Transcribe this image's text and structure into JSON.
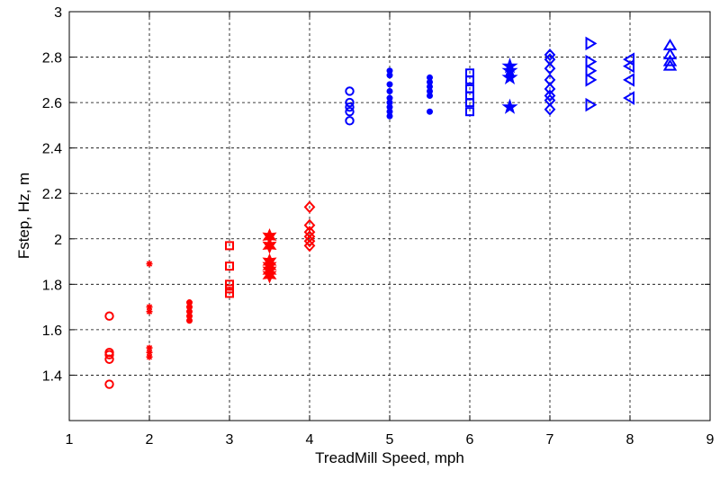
{
  "chart_data": {
    "type": "scatter",
    "title": "",
    "xlabel": "TreadMill Speed, mph",
    "ylabel": "Fstep, Hz, m",
    "xlim": [
      1,
      9
    ],
    "ylim": [
      1.2,
      3.0
    ],
    "xticks": [
      "1",
      "2",
      "3",
      "4",
      "5",
      "6",
      "7",
      "8",
      "9"
    ],
    "yticks": [
      "1.4",
      "1.6",
      "1.8",
      "2",
      "2.2",
      "2.4",
      "2.6",
      "2.8",
      "3"
    ],
    "grid": true,
    "colors": {
      "walk": "#ff0000",
      "run": "#0000ff"
    },
    "series": [
      {
        "x": 1.5,
        "marker": "circle",
        "color": "walk",
        "values": [
          1.36,
          1.47,
          1.49,
          1.5,
          1.66
        ]
      },
      {
        "x": 2.0,
        "marker": "asterisk",
        "color": "walk",
        "values": [
          1.48,
          1.5,
          1.52,
          1.68,
          1.7,
          1.89
        ]
      },
      {
        "x": 2.5,
        "marker": "circle-filled",
        "color": "walk",
        "values": [
          1.64,
          1.66,
          1.68,
          1.7,
          1.72
        ]
      },
      {
        "x": 3.0,
        "marker": "square",
        "color": "walk",
        "values": [
          1.76,
          1.78,
          1.8,
          1.88,
          1.97
        ]
      },
      {
        "x": 3.5,
        "marker": "hexagram",
        "color": "walk",
        "values": [
          1.84,
          1.86,
          1.88,
          1.9,
          1.97,
          2.01
        ]
      },
      {
        "x": 4.0,
        "marker": "diamond",
        "color": "walk",
        "values": [
          1.97,
          1.99,
          2.01,
          2.03,
          2.06,
          2.14
        ]
      },
      {
        "x": 4.5,
        "marker": "circle",
        "color": "run",
        "values": [
          2.52,
          2.56,
          2.58,
          2.6,
          2.65
        ]
      },
      {
        "x": 5.0,
        "marker": "circle-filled",
        "color": "run",
        "values": [
          2.54,
          2.56,
          2.58,
          2.6,
          2.62,
          2.65,
          2.68,
          2.72,
          2.74
        ]
      },
      {
        "x": 5.5,
        "marker": "circle-filled",
        "color": "run",
        "values": [
          2.56,
          2.63,
          2.65,
          2.67,
          2.69,
          2.71
        ]
      },
      {
        "x": 6.0,
        "marker": "square",
        "color": "run",
        "values": [
          2.56,
          2.6,
          2.63,
          2.66,
          2.7,
          2.73
        ]
      },
      {
        "x": 6.5,
        "marker": "pentagram",
        "color": "run",
        "values": [
          2.58,
          2.71,
          2.74,
          2.76
        ]
      },
      {
        "x": 7.0,
        "marker": "diamond",
        "color": "run",
        "values": [
          2.57,
          2.61,
          2.63,
          2.66,
          2.7,
          2.75,
          2.79,
          2.81
        ]
      },
      {
        "x": 7.5,
        "marker": "triangle-right",
        "color": "run",
        "values": [
          2.59,
          2.7,
          2.74,
          2.78,
          2.86
        ]
      },
      {
        "x": 8.0,
        "marker": "triangle-left",
        "color": "run",
        "values": [
          2.62,
          2.7,
          2.76,
          2.79
        ]
      },
      {
        "x": 8.5,
        "marker": "triangle-up",
        "color": "run",
        "values": [
          2.76,
          2.78,
          2.81,
          2.85
        ]
      }
    ]
  }
}
